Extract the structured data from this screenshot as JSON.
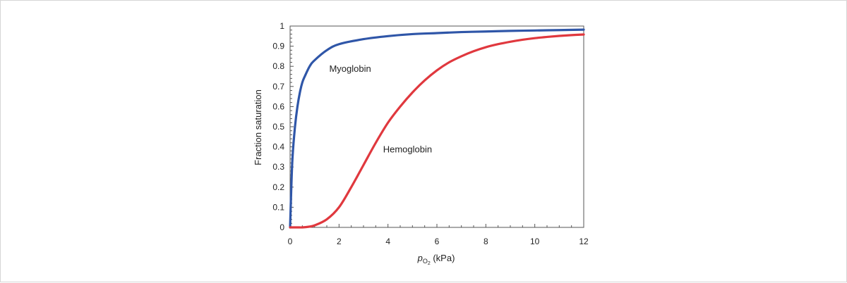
{
  "chart_data": {
    "type": "line",
    "xlabel": {
      "italic": "p",
      "subscript": "O",
      "subscript2": "2",
      "unit": " (kPa)"
    },
    "ylabel": "Fraction saturation",
    "xlim": [
      0,
      12
    ],
    "ylim": [
      0,
      1
    ],
    "x_ticks": [
      0,
      2,
      4,
      6,
      8,
      10,
      12
    ],
    "y_ticks": [
      0,
      0.1,
      0.2,
      0.3,
      0.4,
      0.5,
      0.6,
      0.7,
      0.8,
      0.9,
      1
    ],
    "grid": false,
    "series": [
      {
        "name": "Myoglobin",
        "color": "#2f56a8",
        "x": [
          0,
          0.05,
          0.1,
          0.2,
          0.3,
          0.4,
          0.5,
          0.6,
          0.8,
          1.0,
          1.5,
          2,
          3,
          4,
          5,
          6,
          7,
          8,
          9,
          10,
          11,
          12
        ],
        "y": [
          0,
          0.2,
          0.35,
          0.5,
          0.6,
          0.67,
          0.72,
          0.75,
          0.8,
          0.83,
          0.88,
          0.91,
          0.935,
          0.95,
          0.96,
          0.965,
          0.97,
          0.973,
          0.976,
          0.978,
          0.98,
          0.982
        ]
      },
      {
        "name": "Hemoglobin",
        "color": "#e0383e",
        "x": [
          0,
          0.3,
          0.5,
          0.75,
          1,
          1.5,
          2,
          2.5,
          3,
          3.5,
          4,
          4.5,
          5,
          5.5,
          6,
          6.5,
          7,
          7.5,
          8,
          8.5,
          9,
          9.5,
          10,
          10.5,
          11,
          11.5,
          12
        ],
        "y": [
          0,
          0,
          0,
          0.003,
          0.01,
          0.04,
          0.1,
          0.2,
          0.31,
          0.42,
          0.52,
          0.6,
          0.67,
          0.73,
          0.78,
          0.82,
          0.85,
          0.875,
          0.895,
          0.91,
          0.922,
          0.932,
          0.94,
          0.946,
          0.951,
          0.955,
          0.958
        ]
      }
    ],
    "annotations": [
      {
        "text": "Myoglobin",
        "x": 1.6,
        "y": 0.79
      },
      {
        "text": "Hemoglobin",
        "x": 3.8,
        "y": 0.39
      }
    ]
  }
}
